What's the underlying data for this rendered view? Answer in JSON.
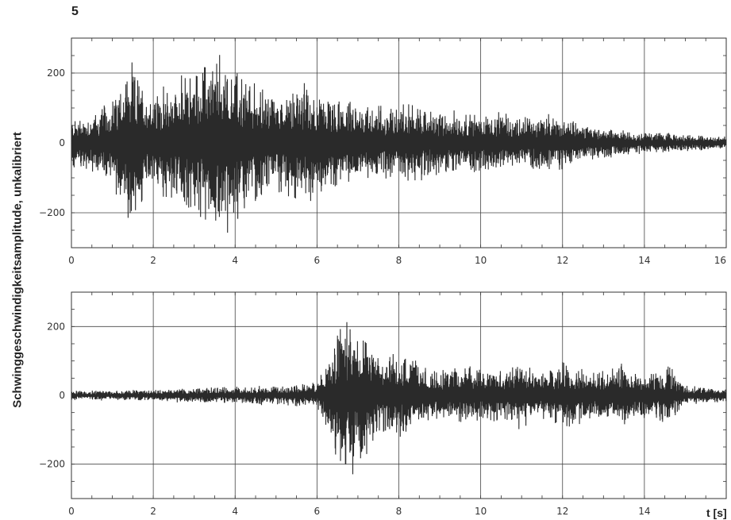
{
  "figure": {
    "number_label": "5",
    "ylabel": "Schwinggeschwindigkeitsamplitude, unkalibriert",
    "xunit_label": "t [s]"
  },
  "colors": {
    "trace": "#2a2a2a",
    "grid": "#444444",
    "frame": "#333333"
  },
  "chart_data": [
    {
      "type": "line",
      "title": "",
      "xlabel": "t [s]",
      "ylabel": "Schwinggeschwindigkeitsamplitude, unkalibriert",
      "xlim": [
        0,
        16
      ],
      "ylim": [
        -300,
        300
      ],
      "xticks": [
        0,
        2,
        4,
        6,
        8,
        10,
        12,
        14,
        16
      ],
      "yticks": [
        -200,
        0,
        200
      ],
      "grid": true,
      "x_tick_labels": [
        "0",
        "2",
        "4",
        "6",
        "8",
        "10",
        "12",
        "14",
        "16"
      ],
      "y_tick_labels": [
        "-200",
        "0",
        "200"
      ],
      "series": [
        {
          "envelope_t": [
            0,
            0.5,
            1.0,
            1.4,
            2.0,
            2.5,
            3.0,
            3.5,
            3.8,
            4.2,
            5.0,
            5.6,
            6.5,
            7.5,
            8.3,
            9.0,
            10.0,
            11.0,
            11.7,
            12.5,
            13.5,
            14.5,
            15.5,
            16.0
          ],
          "envelope_amp": [
            80,
            90,
            140,
            250,
            150,
            190,
            230,
            270,
            280,
            210,
            150,
            190,
            130,
            120,
            125,
            100,
            95,
            85,
            90,
            60,
            40,
            30,
            25,
            20
          ]
        }
      ]
    },
    {
      "type": "line",
      "title": "",
      "xlabel": "t [s]",
      "ylabel": "Schwinggeschwindigkeitsamplitude, unkalibriert",
      "xlim": [
        0,
        16
      ],
      "ylim": [
        -300,
        300
      ],
      "xticks": [
        0,
        2,
        4,
        6,
        8,
        10,
        12,
        14
      ],
      "yticks": [
        -200,
        0,
        200
      ],
      "grid": true,
      "x_tick_labels": [
        "0",
        "2",
        "4",
        "6",
        "8",
        "10",
        "12",
        "14"
      ],
      "y_tick_labels": [
        "-200",
        "0",
        "200"
      ],
      "series": [
        {
          "envelope_t": [
            0,
            2.0,
            3.5,
            5.0,
            6.0,
            6.3,
            6.6,
            6.8,
            7.2,
            7.6,
            8.2,
            8.5,
            9.0,
            9.5,
            10.0,
            11.0,
            11.5,
            12.0,
            12.5,
            13.0,
            13.5,
            14.0,
            14.6,
            15.0,
            16.0
          ],
          "envelope_amp": [
            15,
            18,
            25,
            30,
            40,
            120,
            250,
            260,
            200,
            110,
            150,
            90,
            90,
            100,
            80,
            100,
            70,
            110,
            90,
            80,
            100,
            70,
            90,
            30,
            20
          ]
        }
      ]
    }
  ]
}
